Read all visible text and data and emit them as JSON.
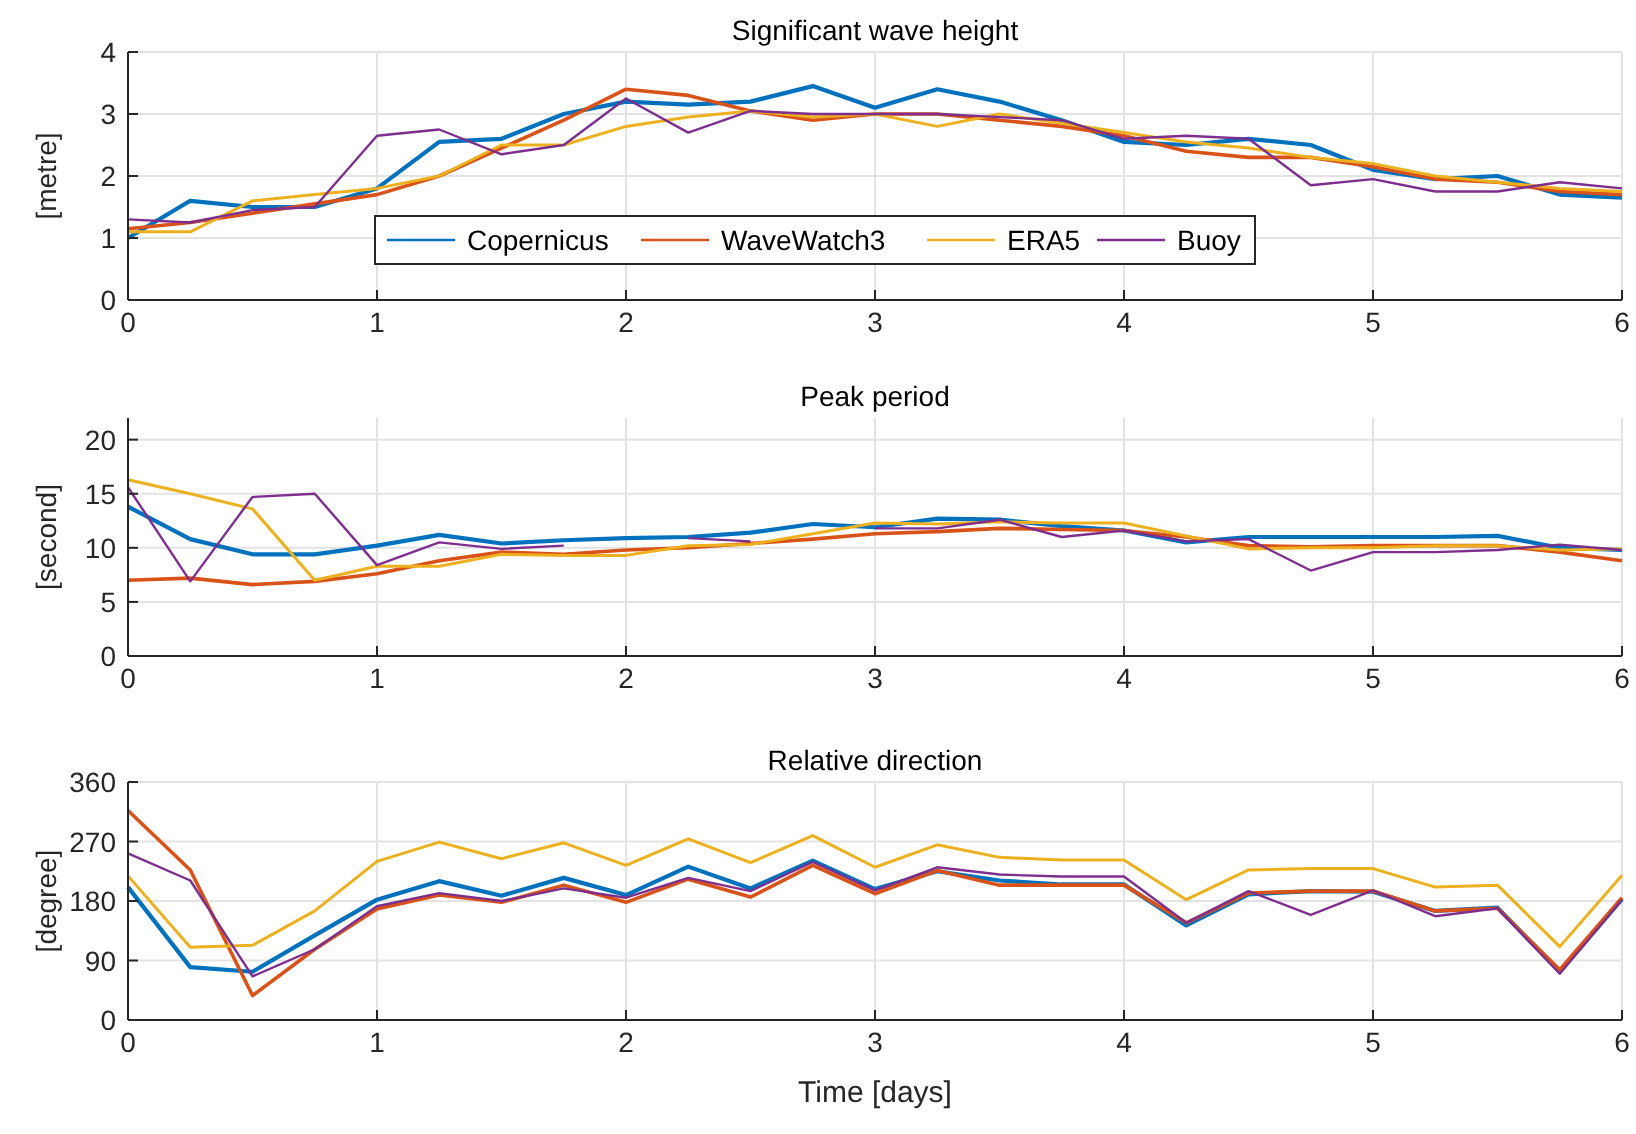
{
  "chart_data": [
    {
      "type": "line",
      "title": "Significant wave height",
      "ylabel": "[metre]",
      "x": [
        0,
        0.25,
        0.5,
        0.75,
        1,
        1.25,
        1.5,
        1.75,
        2,
        2.25,
        2.5,
        2.75,
        3,
        3.25,
        3.5,
        3.75,
        4,
        4.25,
        4.5,
        4.75,
        5,
        5.25,
        5.5,
        5.75,
        6
      ],
      "xlim": [
        0,
        6
      ],
      "xticks": [
        0,
        1,
        2,
        3,
        4,
        5,
        6
      ],
      "ylim": [
        0,
        4
      ],
      "yticks": [
        0,
        1,
        2,
        3,
        4
      ],
      "grid": true,
      "legend": "bottom",
      "series": [
        {
          "name": "Copernicus",
          "color": "#0072bd",
          "values": [
            1.0,
            1.6,
            1.5,
            1.5,
            1.8,
            2.55,
            2.6,
            3.0,
            3.2,
            3.15,
            3.2,
            3.45,
            3.1,
            3.4,
            3.2,
            2.9,
            2.55,
            2.5,
            2.6,
            2.5,
            2.1,
            1.95,
            2.0,
            1.7,
            1.65
          ]
        },
        {
          "name": "WaveWatch3",
          "color": "#d95319",
          "values": [
            1.15,
            1.25,
            1.4,
            1.55,
            1.7,
            2.0,
            2.45,
            2.9,
            3.4,
            3.3,
            3.05,
            2.9,
            3.0,
            3.0,
            2.9,
            2.8,
            2.65,
            2.4,
            2.3,
            2.3,
            2.15,
            1.95,
            1.9,
            1.75,
            1.7
          ]
        },
        {
          "name": "ERA5",
          "color": "#edb120",
          "values": [
            1.1,
            1.1,
            1.6,
            1.7,
            1.8,
            2.0,
            2.5,
            2.5,
            2.8,
            2.95,
            3.05,
            2.95,
            3.0,
            2.8,
            3.0,
            2.85,
            2.7,
            2.55,
            2.45,
            2.3,
            2.2,
            2.0,
            1.9,
            1.8,
            1.75
          ]
        },
        {
          "name": "Buoy",
          "color": "#7e2f8e",
          "values": [
            1.3,
            1.25,
            1.45,
            1.5,
            2.65,
            2.75,
            2.35,
            2.5,
            3.25,
            2.7,
            3.05,
            3.0,
            3.0,
            3.0,
            2.95,
            2.9,
            2.6,
            2.65,
            2.6,
            1.85,
            1.95,
            1.75,
            1.75,
            1.9,
            1.8
          ]
        }
      ]
    },
    {
      "type": "line",
      "title": "Peak period",
      "ylabel": "[second]",
      "x": [
        0,
        0.25,
        0.5,
        0.75,
        1,
        1.25,
        1.5,
        1.75,
        2,
        2.25,
        2.5,
        2.75,
        3,
        3.25,
        3.5,
        3.75,
        4,
        4.25,
        4.5,
        4.75,
        5,
        5.25,
        5.5,
        5.75,
        6
      ],
      "xlim": [
        0,
        6
      ],
      "xticks": [
        0,
        1,
        2,
        3,
        4,
        5,
        6
      ],
      "ylim": [
        0,
        22
      ],
      "yticks": [
        0,
        5,
        10,
        15,
        20
      ],
      "grid": true,
      "series": [
        {
          "color": "#0072bd",
          "values": [
            13.8,
            10.8,
            9.4,
            9.4,
            10.2,
            11.2,
            10.4,
            10.7,
            10.9,
            11.0,
            11.4,
            12.2,
            11.9,
            12.7,
            12.6,
            12.0,
            11.6,
            10.5,
            11.0,
            11.0,
            11.0,
            11.0,
            11.1,
            10.0,
            9.8
          ]
        },
        {
          "color": "#d95319",
          "values": [
            7.0,
            7.2,
            6.6,
            6.9,
            7.6,
            8.8,
            9.6,
            9.4,
            9.8,
            10.0,
            10.4,
            10.8,
            11.3,
            11.5,
            11.8,
            11.7,
            11.6,
            11.0,
            10.2,
            10.1,
            10.2,
            10.2,
            10.2,
            9.6,
            8.8
          ]
        },
        {
          "color": "#edb120",
          "values": [
            16.3,
            15.0,
            13.6,
            7.0,
            8.3,
            8.3,
            9.4,
            9.3,
            9.3,
            10.2,
            10.3,
            11.3,
            12.3,
            12.2,
            12.4,
            12.3,
            12.3,
            11.1,
            9.9,
            10.0,
            10.0,
            10.2,
            10.2,
            9.8,
            9.9
          ]
        },
        {
          "color": "#7e2f8e",
          "values": [
            15.6,
            6.9,
            14.7,
            15.0,
            8.4,
            10.5,
            9.9,
            10.2,
            null,
            10.9,
            10.6,
            null,
            11.8,
            11.8,
            12.6,
            11.0,
            11.6,
            10.6,
            10.8,
            7.9,
            9.6,
            9.6,
            9.8,
            10.3,
            9.8
          ]
        }
      ]
    },
    {
      "type": "line",
      "title": "Relative direction",
      "ylabel": "[degree]",
      "xlabel": "Time [days]",
      "x": [
        0,
        0.25,
        0.5,
        0.75,
        1,
        1.25,
        1.5,
        1.75,
        2,
        2.25,
        2.5,
        2.75,
        3,
        3.25,
        3.5,
        3.75,
        4,
        4.25,
        4.5,
        4.75,
        5,
        5.25,
        5.5,
        5.75,
        6
      ],
      "xlim": [
        0,
        6
      ],
      "xticks": [
        0,
        1,
        2,
        3,
        4,
        5,
        6
      ],
      "ylim": [
        0,
        360
      ],
      "yticks": [
        0,
        90,
        180,
        270,
        360
      ],
      "grid": true,
      "series": [
        {
          "color": "#0072bd",
          "values": [
            201,
            80,
            73,
            128,
            182,
            210,
            188,
            215,
            189,
            232,
            199,
            241,
            198,
            225,
            211,
            205,
            205,
            143,
            190,
            195,
            194,
            165,
            170,
            73,
            183
          ]
        },
        {
          "color": "#d95319",
          "values": [
            317,
            227,
            37,
            107,
            168,
            189,
            178,
            204,
            178,
            213,
            186,
            234,
            191,
            226,
            204,
            204,
            204,
            147,
            192,
            195,
            195,
            165,
            169,
            76,
            185
          ]
        },
        {
          "color": "#edb120",
          "values": [
            218,
            110,
            113,
            165,
            240,
            269,
            244,
            268,
            234,
            274,
            238,
            279,
            231,
            265,
            246,
            242,
            242,
            182,
            227,
            229,
            229,
            201,
            204,
            111,
            219
          ]
        },
        {
          "color": "#7e2f8e",
          "values": [
            252,
            211,
            66,
            107,
            172,
            192,
            180,
            199,
            185,
            215,
            195,
            239,
            196,
            231,
            220,
            217,
            217,
            147,
            195,
            159,
            196,
            157,
            169,
            70,
            182
          ]
        }
      ]
    }
  ]
}
